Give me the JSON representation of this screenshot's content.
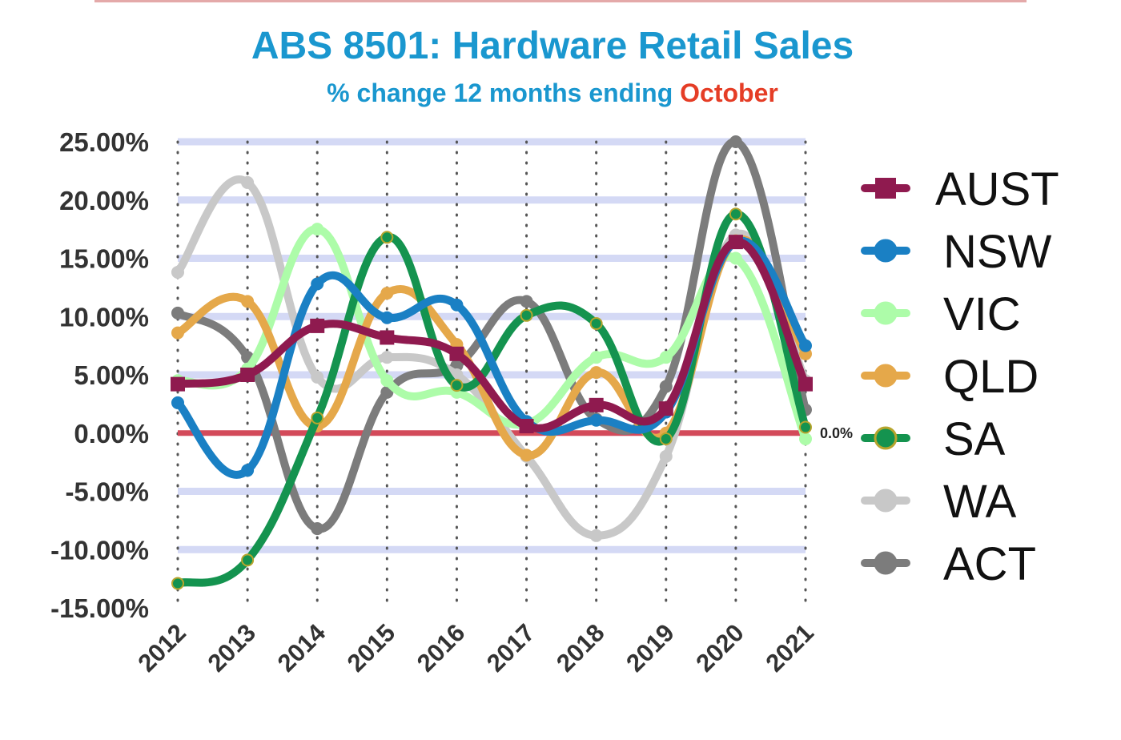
{
  "chart_data": {
    "type": "line",
    "title": "ABS 8501: Hardware Retail Sales",
    "subtitle": "% change 12 months ending",
    "subtitle_highlight": "October",
    "x": [
      "2012",
      "2013",
      "2014",
      "2015",
      "2016",
      "2017",
      "2018",
      "2019",
      "2020",
      "2021"
    ],
    "ylim": [
      -15,
      25
    ],
    "yticks": [
      25,
      20,
      15,
      10,
      5,
      0,
      -5,
      -10,
      -15
    ],
    "ytick_labels": [
      "25.00%",
      "20.00%",
      "15.00%",
      "10.00%",
      "5.00%",
      "0.00%",
      "-5.00%",
      "-10.00%",
      "-15.00%"
    ],
    "grid": "horizontal lines and dotted vertical lines",
    "legend_position": "right",
    "annotation": "0.0%",
    "series": [
      {
        "name": "ACT",
        "color": "#7c7c7c",
        "marker": "circle",
        "values": [
          10.3,
          6.5,
          -8.2,
          3.5,
          5.8,
          11.3,
          1.2,
          4.0,
          25.0,
          2.0
        ]
      },
      {
        "name": "WA",
        "color": "#c8c8c8",
        "marker": "circle",
        "values": [
          13.8,
          21.5,
          4.8,
          6.5,
          5.0,
          -2.0,
          -8.8,
          -2.0,
          17.0,
          4.5
        ]
      },
      {
        "name": "VIC",
        "color": "#adfca9",
        "marker": "circle",
        "values": [
          4.5,
          5.5,
          17.5,
          4.5,
          3.5,
          0.8,
          6.5,
          6.5,
          15.0,
          -0.5
        ]
      },
      {
        "name": "QLD",
        "color": "#e5a84a",
        "marker": "circle",
        "values": [
          8.6,
          11.3,
          0.6,
          12.0,
          7.6,
          -1.9,
          5.2,
          0.0,
          16.5,
          6.8
        ]
      },
      {
        "name": "SA",
        "color": "#14934f",
        "marker": "circle",
        "values": [
          -12.9,
          -10.9,
          1.3,
          16.8,
          4.1,
          10.1,
          9.4,
          -0.5,
          18.8,
          0.5
        ]
      },
      {
        "name": "NSW",
        "color": "#1a80c4",
        "marker": "circle",
        "values": [
          2.6,
          -3.2,
          12.8,
          9.9,
          11.0,
          1.0,
          1.1,
          1.8,
          16.4,
          7.5
        ]
      },
      {
        "name": "AUST",
        "color": "#8f1a4f",
        "marker": "square",
        "values": [
          4.2,
          5.0,
          9.2,
          8.2,
          6.8,
          0.6,
          2.4,
          2.1,
          16.4,
          4.2
        ]
      }
    ],
    "legend_order": [
      "AUST",
      "NSW",
      "VIC",
      "QLD",
      "SA",
      "WA",
      "ACT"
    ],
    "zero_line_color": "#d34a5a",
    "grid_color": "#d4d9f5"
  }
}
